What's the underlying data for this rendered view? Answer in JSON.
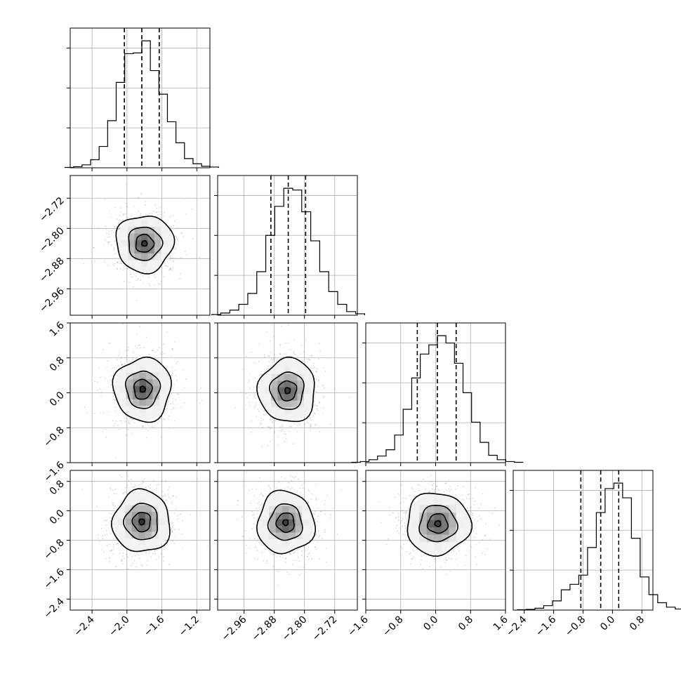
{
  "chart_data": {
    "type": "corner",
    "grid": true,
    "parameters": [
      {
        "range": [
          -2.65,
          -1.05
        ],
        "ticks": [
          -2.4,
          -2.0,
          -1.6,
          -1.2
        ],
        "tick_labels": [
          "−2.4",
          "−2.0",
          "−1.6",
          "−1.2"
        ],
        "median": -1.83,
        "quantile_16": -2.03,
        "quantile_84": -1.63,
        "hist_counts": [
          1,
          3,
          8,
          22,
          58,
          128,
          232,
          310,
          312,
          345,
          264,
          200,
          125,
          68,
          25,
          11,
          4,
          2
        ]
      },
      {
        "range": [
          -3.03,
          -2.66
        ],
        "ticks": [
          -2.96,
          -2.88,
          -2.8,
          -2.72
        ],
        "tick_labels": [
          "−2.96",
          "−2.88",
          "−2.80",
          "−2.72"
        ],
        "median": -2.843,
        "quantile_16": -2.889,
        "quantile_84": -2.797,
        "hist_counts": [
          2,
          6,
          14,
          30,
          60,
          120,
          220,
          300,
          350,
          345,
          285,
          205,
          120,
          65,
          30,
          10,
          4
        ]
      },
      {
        "range": [
          -1.6,
          1.6
        ],
        "ticks": [
          -1.6,
          -0.8,
          0.0,
          0.8,
          1.6
        ],
        "tick_labels": [
          "−1.6",
          "−0.8",
          "0.0",
          "0.8",
          "1.6"
        ],
        "median": 0.04,
        "quantile_16": -0.42,
        "quantile_84": 0.47,
        "hist_counts": [
          1,
          3,
          8,
          18,
          35,
          75,
          145,
          230,
          295,
          320,
          345,
          325,
          270,
          190,
          110,
          55,
          20,
          8,
          3,
          1
        ]
      },
      {
        "range": [
          -2.7,
          1.1
        ],
        "ticks": [
          -2.4,
          -1.6,
          -0.8,
          0.0,
          0.8
        ],
        "tick_labels": [
          "−2.4",
          "−1.6",
          "−0.8",
          "0.0",
          "0.8"
        ],
        "median": -0.32,
        "quantile_16": -0.86,
        "quantile_84": 0.17,
        "hist_counts": [
          1,
          2,
          5,
          12,
          25,
          55,
          70,
          95,
          170,
          265,
          330,
          345,
          305,
          195,
          90,
          42,
          20,
          8,
          3
        ]
      }
    ],
    "pairs": [
      {
        "row": 1,
        "col": 0,
        "peak": [
          -1.8,
          -2.84
        ],
        "contour_levels": [
          0.12,
          0.4,
          0.75,
          1.28
        ]
      },
      {
        "row": 2,
        "col": 0,
        "peak": [
          -1.82,
          0.08
        ],
        "contour_levels": [
          0.12,
          0.4,
          0.75,
          1.28
        ]
      },
      {
        "row": 2,
        "col": 1,
        "peak": [
          -2.845,
          0.05
        ],
        "contour_levels": [
          0.12,
          0.4,
          0.75,
          1.28
        ]
      },
      {
        "row": 3,
        "col": 0,
        "peak": [
          -1.83,
          -0.3
        ],
        "contour_levels": [
          0.12,
          0.4,
          0.75,
          1.28
        ]
      },
      {
        "row": 3,
        "col": 1,
        "peak": [
          -2.85,
          -0.32
        ],
        "contour_levels": [
          0.12,
          0.4,
          0.75,
          1.28
        ]
      },
      {
        "row": 3,
        "col": 2,
        "peak": [
          0.05,
          -0.35
        ],
        "contour_levels": [
          0.12,
          0.4,
          0.75,
          1.28
        ]
      }
    ]
  }
}
